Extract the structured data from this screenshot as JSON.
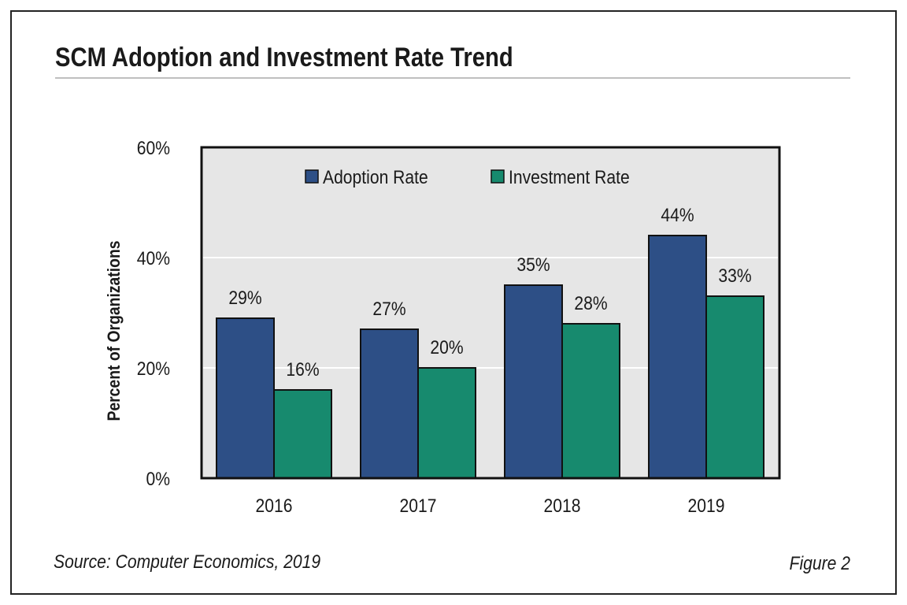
{
  "chart_data": {
    "type": "bar",
    "title": "SCM Adoption and Investment Rate Trend",
    "xlabel": "",
    "ylabel": "Percent of Organizations",
    "ylim": [
      0,
      60
    ],
    "yticks": [
      0,
      20,
      40,
      60
    ],
    "ytick_labels": [
      "0%",
      "20%",
      "40%",
      "60%"
    ],
    "grid": true,
    "legend_position": "top-center",
    "categories": [
      "2016",
      "2017",
      "2018",
      "2019"
    ],
    "series": [
      {
        "name": "Adoption Rate",
        "color": "#2d4f86",
        "values": [
          29,
          27,
          35,
          44
        ],
        "labels": [
          "29%",
          "27%",
          "35%",
          "44%"
        ]
      },
      {
        "name": "Investment Rate",
        "color": "#178a6e",
        "values": [
          16,
          20,
          28,
          33
        ],
        "labels": [
          "16%",
          "20%",
          "28%",
          "33%"
        ]
      }
    ]
  },
  "footer": {
    "source": "Source: Computer Economics, 2019",
    "figure": "Figure 2"
  }
}
